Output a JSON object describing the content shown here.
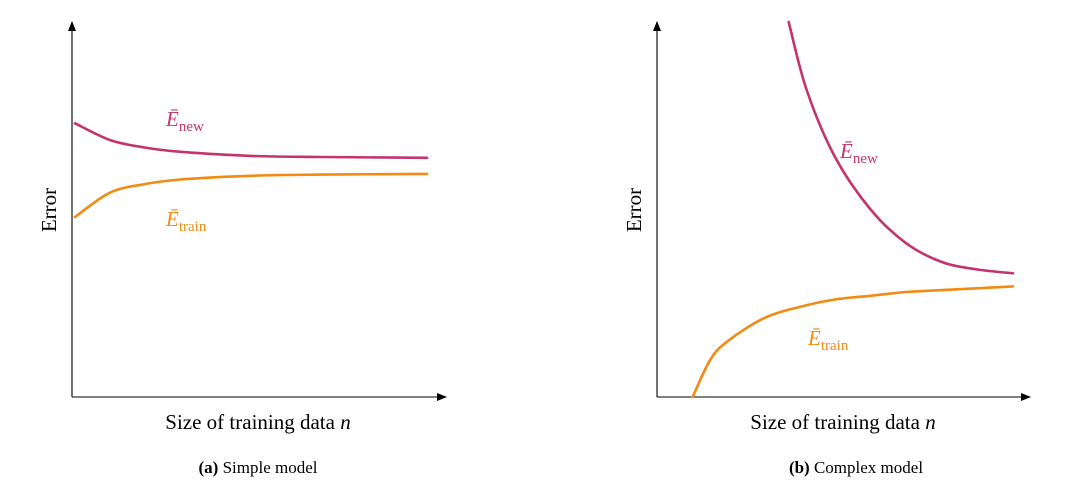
{
  "colors": {
    "new": "#c4346c",
    "train": "#f28a13"
  },
  "chart_data": [
    {
      "id": "a",
      "type": "line",
      "xlabel_prefix": "Size of training data ",
      "xlabel_var": "n",
      "ylabel": "Error",
      "caption_tag": "(a)",
      "caption_text": " Simple model",
      "series": [
        {
          "name_main": "Ē",
          "name_sub": "new",
          "color_key": "new",
          "x": [
            0,
            0.1,
            0.2,
            0.3,
            0.5,
            0.7,
            1.0
          ],
          "y": [
            0.73,
            0.685,
            0.665,
            0.654,
            0.643,
            0.64,
            0.638
          ]
        },
        {
          "name_main": "Ē",
          "name_sub": "train",
          "color_key": "train",
          "x": [
            0,
            0.1,
            0.2,
            0.3,
            0.5,
            0.7,
            1.0
          ],
          "y": [
            0.48,
            0.545,
            0.568,
            0.58,
            0.59,
            0.593,
            0.595
          ]
        }
      ]
    },
    {
      "id": "b",
      "type": "line",
      "xlabel_prefix": "Size of training data ",
      "xlabel_var": "n",
      "ylabel": "Error",
      "caption_tag": "(b)",
      "caption_text": " Complex model",
      "series": [
        {
          "name_main": "Ē",
          "name_sub": "new",
          "color_key": "new",
          "x": [
            0.37,
            0.42,
            0.5,
            0.6,
            0.7,
            0.8,
            0.9,
            1.0
          ],
          "y": [
            1.0,
            0.82,
            0.64,
            0.5,
            0.41,
            0.36,
            0.34,
            0.33
          ]
        },
        {
          "name_main": "Ē",
          "name_sub": "train",
          "color_key": "train",
          "x": [
            0.1,
            0.15,
            0.2,
            0.3,
            0.4,
            0.5,
            0.6,
            0.7,
            0.8,
            0.9,
            1.0
          ],
          "y": [
            0.0,
            0.1,
            0.15,
            0.21,
            0.24,
            0.26,
            0.27,
            0.28,
            0.285,
            0.29,
            0.295
          ]
        }
      ]
    }
  ]
}
